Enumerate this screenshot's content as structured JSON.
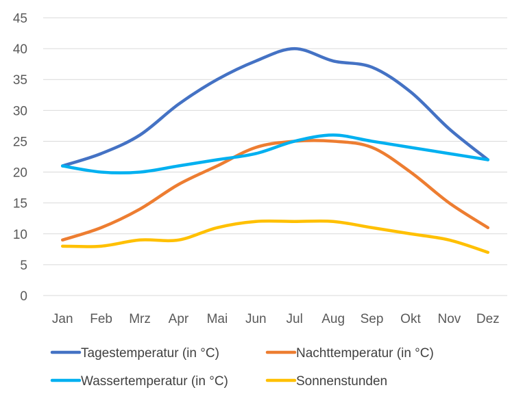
{
  "chart_data": {
    "type": "line",
    "categories": [
      "Jan",
      "Feb",
      "Mrz",
      "Apr",
      "Mai",
      "Jun",
      "Jul",
      "Aug",
      "Sep",
      "Okt",
      "Nov",
      "Dez"
    ],
    "series": [
      {
        "name": "Tagestemperatur (in °C)",
        "color": "#4472C4",
        "values": [
          21,
          23,
          26,
          31,
          35,
          38,
          40,
          38,
          37,
          33,
          27,
          22
        ]
      },
      {
        "name": "Nachttemperatur  (in °C)",
        "color": "#ED7D31",
        "values": [
          9,
          11,
          14,
          18,
          21,
          24,
          25,
          25,
          24,
          20,
          15,
          11
        ]
      },
      {
        "name": "Wassertemperatur  (in °C)",
        "color": "#00B0F0",
        "values": [
          21,
          20,
          20,
          21,
          22,
          23,
          25,
          26,
          25,
          24,
          23,
          22
        ]
      },
      {
        "name": "Sonnenstunden",
        "color": "#FFC000",
        "values": [
          8,
          8,
          9,
          9,
          11,
          12,
          12,
          12,
          11,
          10,
          9,
          7
        ]
      }
    ],
    "y_ticks": [
      "0",
      "5",
      "10",
      "15",
      "20",
      "25",
      "30",
      "35",
      "40",
      "45"
    ],
    "ylim": [
      0,
      45
    ],
    "grid": "horizontal",
    "legend": "bottom",
    "title": "",
    "xlabel": "",
    "ylabel": ""
  }
}
